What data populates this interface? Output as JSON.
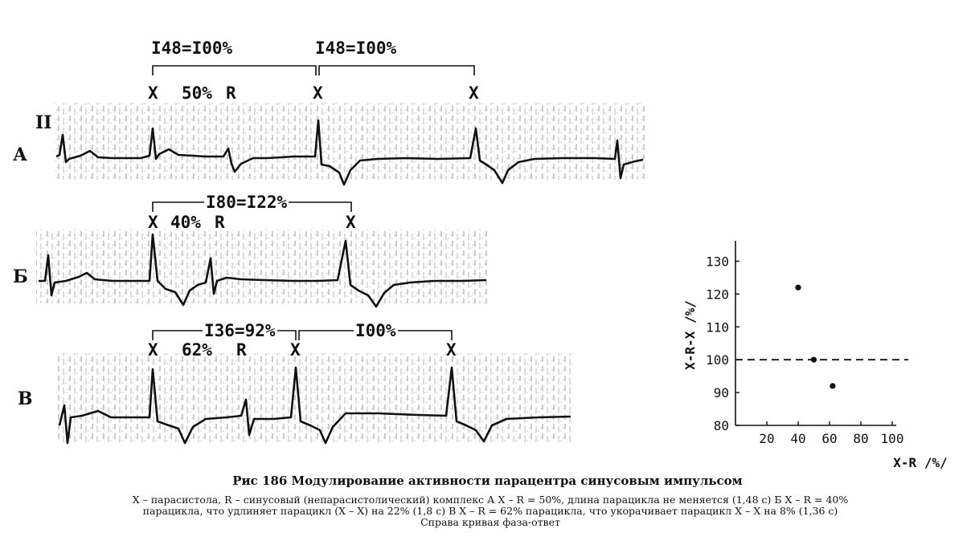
{
  "figure": {
    "strips": [
      {
        "label": "А",
        "lead": "II",
        "brackets": [
          "I48=I00%",
          "I48=I00%"
        ],
        "markers": [
          "X",
          "50%",
          "R",
          "X",
          "X"
        ]
      },
      {
        "label": "Б",
        "brackets": [
          "I80=I22%"
        ],
        "markers": [
          "X",
          "40%",
          "R",
          "X"
        ]
      },
      {
        "label": "В",
        "brackets": [
          "I36=92%",
          "I00%"
        ],
        "markers": [
          "X",
          "62%",
          "R",
          "X",
          "X"
        ]
      }
    ],
    "caption": {
      "title": "Рис 186 Модулирование активности парацентра синусовым импульсом",
      "lines": [
        "X – парасистола, R – синусовый (непарасистолический) комплекс  А  X – R = 50%, длина парацикла не меняется  (1,48 с)  Б  X – R = 40%",
        "парацикла, что удлиняет парацикл (X – X)  на 22% (1,8 с)  В  X – R = 62% парацикла, что укорачивает парацикл X – X на 8% (1,36 с)",
        "Справа кривая фаза-ответ"
      ]
    }
  },
  "chart_data": {
    "type": "scatter",
    "xlabel": "X-R /%/",
    "ylabel": "X-R-X /%/",
    "x_ticks": [
      "20",
      "40",
      "60",
      "80",
      "100"
    ],
    "y_ticks": [
      "80",
      "90",
      "100",
      "110",
      "120",
      "130"
    ],
    "xlim": [
      0,
      100
    ],
    "ylim": [
      80,
      135
    ],
    "reference_line": {
      "y": 100,
      "style": "dashed"
    },
    "points": [
      {
        "x": 40,
        "y": 122
      },
      {
        "x": 50,
        "y": 100
      },
      {
        "x": 62,
        "y": 92
      }
    ]
  }
}
